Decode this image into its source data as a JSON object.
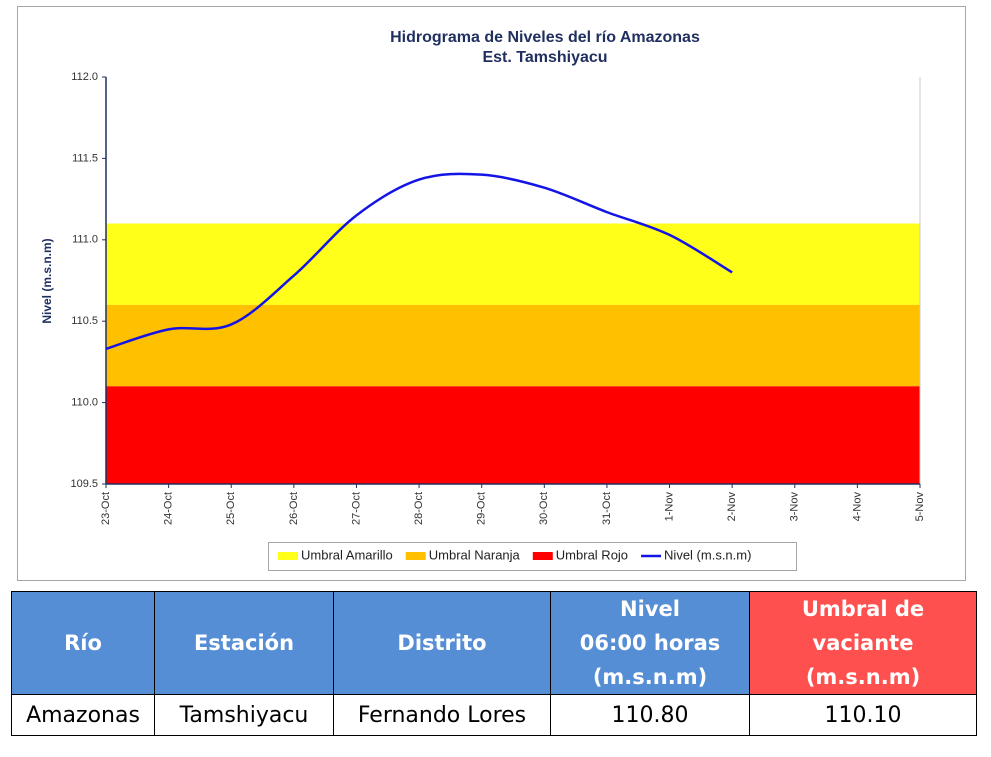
{
  "chart_data": {
    "type": "line",
    "title": "Hidrograma de Niveles del río Amazonas",
    "subtitle": "Est. Tamshiyacu",
    "y_label": "Nivel (m.s.n.m)",
    "categories": [
      "23-Oct",
      "24-Oct",
      "25-Oct",
      "26-Oct",
      "27-Oct",
      "28-Oct",
      "29-Oct",
      "30-Oct",
      "31-Oct",
      "1-Nov",
      "2-Nov",
      "3-Nov",
      "4-Nov",
      "5-Nov"
    ],
    "ylim": [
      109.5,
      112.0
    ],
    "yticks": [
      109.5,
      {
        "value": 110,
        "label": "110.0"
      },
      110.5,
      {
        "value": 111,
        "label": "111.0"
      },
      111.5,
      {
        "value": 112,
        "label": "112.0"
      }
    ],
    "bands": [
      {
        "name": "Umbral Amarillo",
        "color": "#ffff1a",
        "range": [
          110.6,
          111.1
        ]
      },
      {
        "name": "Umbral Naranja",
        "color": "#ffc000",
        "range": [
          110.1,
          110.6
        ]
      },
      {
        "name": "Umbral Rojo",
        "color": "#ff0000",
        "range": [
          109.5,
          110.1
        ]
      }
    ],
    "series": [
      {
        "name": "Nivel (m.s.n.m)",
        "color": "#1414e6",
        "values": [
          110.33,
          110.45,
          110.48,
          110.78,
          111.15,
          111.37,
          111.4,
          111.32,
          111.17,
          111.03,
          110.8,
          null,
          null,
          null
        ]
      }
    ]
  },
  "table": {
    "header": [
      [
        "Río"
      ],
      [
        "Estación"
      ],
      [
        "Distrito"
      ],
      [
        "Nivel",
        "06:00 horas",
        "(m.s.n.m)"
      ],
      [
        "Umbral de",
        "vaciante",
        "(m.s.n.m)"
      ]
    ],
    "rows": [
      [
        "Amazonas",
        "Tamshiyacu",
        "Fernando Lores",
        "110.80",
        "110.10"
      ]
    ]
  }
}
